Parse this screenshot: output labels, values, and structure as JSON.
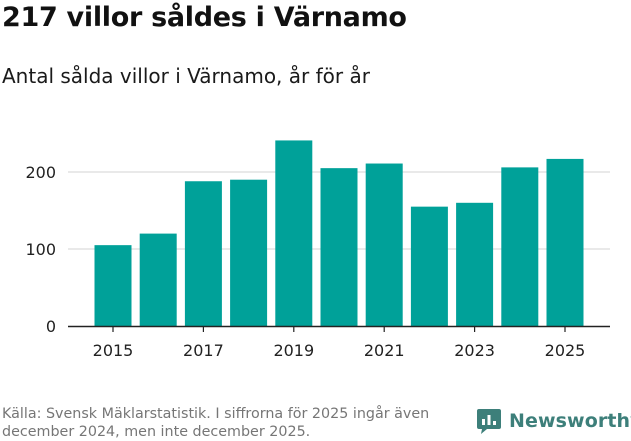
{
  "title": "217 villor såldes i Värnamo",
  "subtitle": "Antal sålda villor i Värnamo, år för år",
  "source": "Källa: Svensk Mäklarstatistik. I siffrorna för 2025 ingår även december 2024, men inte december 2025.",
  "brand": {
    "name": "Newsworthy",
    "icon": "newsworthy-logo-icon"
  },
  "colors": {
    "bar": "#00a199",
    "grid": "#dcdcdc",
    "axis": "#222222",
    "text": "#222222",
    "brand": "#3d7f7a"
  },
  "chart_data": {
    "type": "bar",
    "title": "Antal sålda villor i Värnamo, år för år",
    "xlabel": "",
    "ylabel": "",
    "categories": [
      "2015",
      "2016",
      "2017",
      "2018",
      "2019",
      "2020",
      "2021",
      "2022",
      "2023",
      "2024",
      "2025"
    ],
    "values": [
      105,
      120,
      188,
      190,
      241,
      205,
      211,
      155,
      160,
      206,
      217
    ],
    "ylim": [
      0,
      250
    ],
    "yticks": [
      0,
      100,
      200
    ],
    "xticks": [
      "2015",
      "2017",
      "2019",
      "2021",
      "2023",
      "2025"
    ],
    "grid": true
  }
}
